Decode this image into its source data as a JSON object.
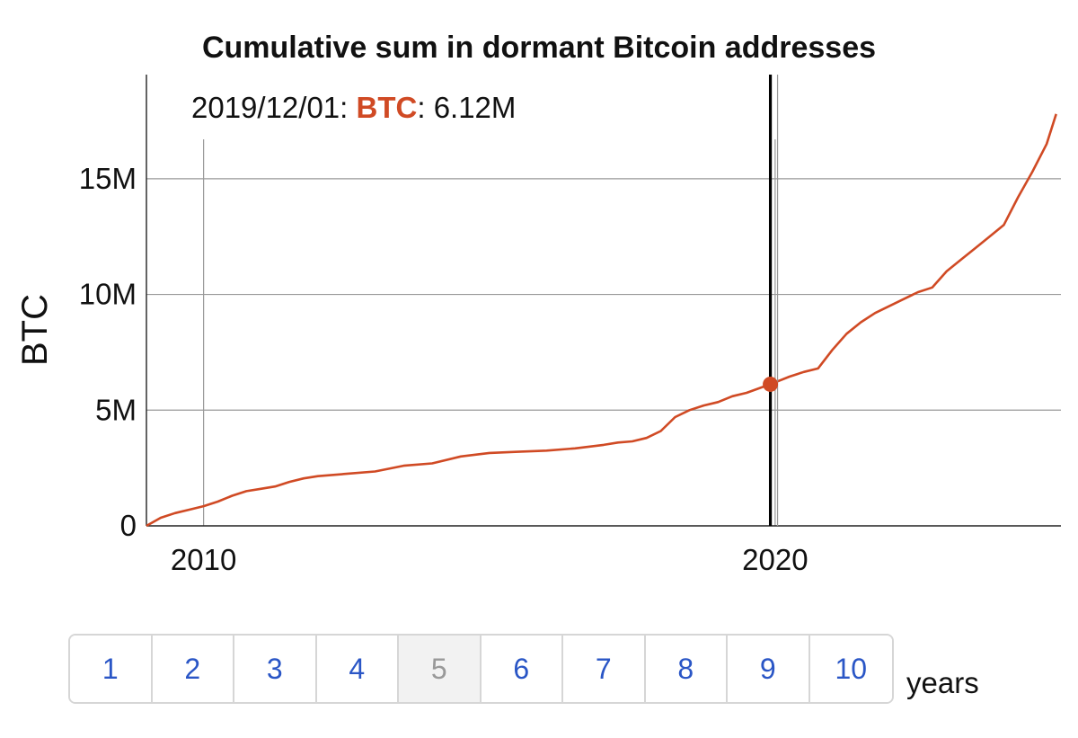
{
  "chart_data": {
    "type": "line",
    "title": "Cumulative sum in dormant Bitcoin addresses",
    "xlabel": "",
    "ylabel": "BTC",
    "x_ticks": [
      "2010",
      "2020"
    ],
    "y_ticks": [
      "0",
      "5M",
      "10M",
      "15M"
    ],
    "x_range": [
      "2009-01",
      "2025-01"
    ],
    "ylim": [
      0,
      19500000
    ],
    "grid": true,
    "legend": "none",
    "series": [
      {
        "color": "#d04a24",
        "x": [
          "2009-01",
          "2009-04",
          "2009-07",
          "2009-10",
          "2010-01",
          "2010-04",
          "2010-07",
          "2010-10",
          "2011-01",
          "2011-04",
          "2011-07",
          "2011-10",
          "2012-01",
          "2012-07",
          "2013-01",
          "2013-07",
          "2014-01",
          "2014-07",
          "2015-01",
          "2015-07",
          "2016-01",
          "2016-07",
          "2017-01",
          "2017-04",
          "2017-07",
          "2017-10",
          "2018-01",
          "2018-04",
          "2018-07",
          "2018-10",
          "2019-01",
          "2019-04",
          "2019-07",
          "2019-12",
          "2020-04",
          "2020-07",
          "2020-10",
          "2021-01",
          "2021-04",
          "2021-07",
          "2021-10",
          "2022-01",
          "2022-04",
          "2022-07",
          "2022-10",
          "2023-01",
          "2023-04",
          "2023-07",
          "2023-10",
          "2024-01",
          "2024-04",
          "2024-07",
          "2024-10",
          "2024-12"
        ],
        "y": [
          0,
          350000,
          550000,
          700000,
          850000,
          1050000,
          1300000,
          1500000,
          1600000,
          1700000,
          1900000,
          2050000,
          2150000,
          2250000,
          2350000,
          2600000,
          2700000,
          3000000,
          3150000,
          3200000,
          3250000,
          3350000,
          3500000,
          3600000,
          3650000,
          3800000,
          4100000,
          4700000,
          5000000,
          5200000,
          5350000,
          5600000,
          5750000,
          6120000,
          6450000,
          6650000,
          6800000,
          7600000,
          8300000,
          8800000,
          9200000,
          9500000,
          9800000,
          10100000,
          10300000,
          11000000,
          11500000,
          12000000,
          12500000,
          13000000,
          14200000,
          15300000,
          16500000,
          17800000
        ]
      }
    ],
    "cursor": {
      "x": "2019-12",
      "y": 6120000,
      "date_label": "2019/12/01",
      "series_label": "BTC",
      "value_label": "6.12M"
    }
  },
  "range_selector": {
    "options": [
      "1",
      "2",
      "3",
      "4",
      "5",
      "6",
      "7",
      "8",
      "9",
      "10"
    ],
    "selected": "5",
    "suffix": "years"
  },
  "colors": {
    "series": "#d04a24",
    "button_text": "#2a56c6",
    "selected_button_text": "#999999"
  }
}
